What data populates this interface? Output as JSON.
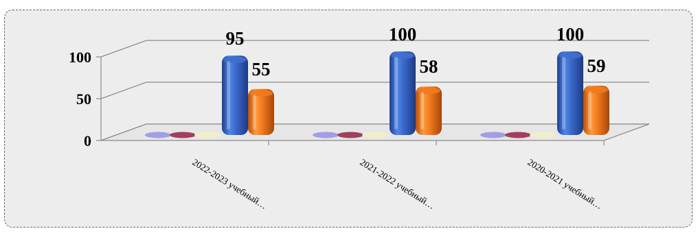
{
  "chart_data": {
    "type": "bar",
    "categories": [
      "2022-2023 учебный…",
      "2021-2022 учебный…",
      "2020-2021 учебный…"
    ],
    "series": [
      {
        "values": [
          0,
          0,
          0
        ],
        "color": "#9f9fe6"
      },
      {
        "values": [
          0,
          0,
          0
        ],
        "color": "#a0405f"
      },
      {
        "values": [
          0,
          0,
          0
        ],
        "color": "#f1efc9"
      },
      {
        "values": [
          95,
          100,
          100
        ],
        "color": "#3f6fcf",
        "data_labels": [
          "95",
          "100",
          "100"
        ]
      },
      {
        "values": [
          55,
          58,
          59
        ],
        "color": "#f07a1e",
        "data_labels": [
          "55",
          "58",
          "59"
        ]
      }
    ],
    "y_ticks": [
      "0",
      "50",
      "100"
    ],
    "ylim": [
      0,
      100
    ],
    "grid": true,
    "style": "3d-cylinder"
  }
}
